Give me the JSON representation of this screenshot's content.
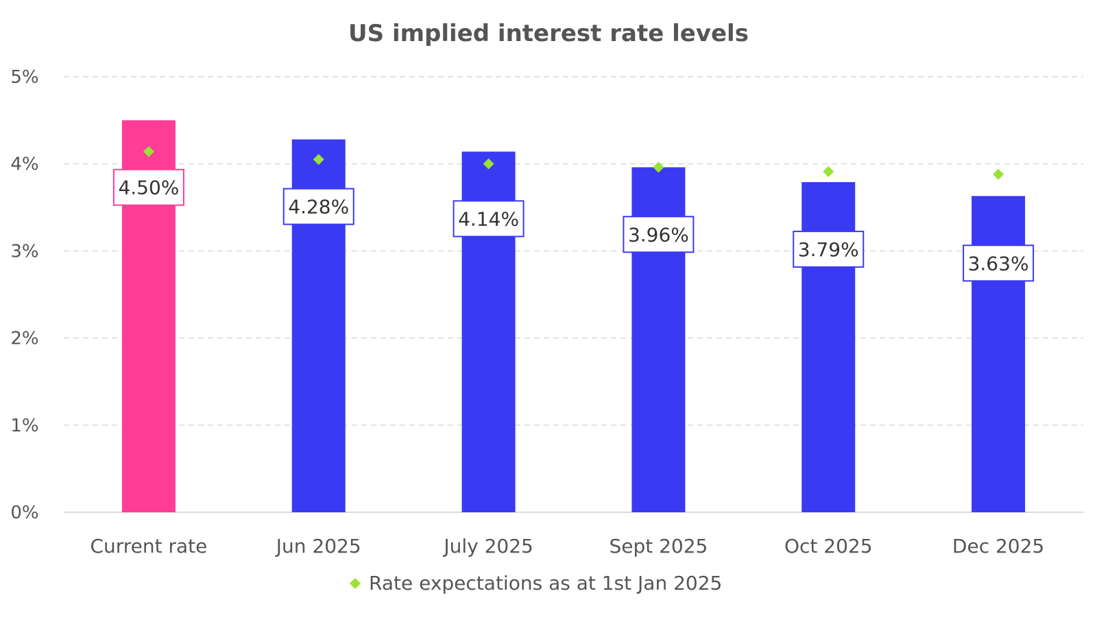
{
  "chart_data": {
    "type": "bar",
    "title": "US implied interest rate levels",
    "xlabel": "",
    "ylabel": "",
    "categories": [
      "Current rate",
      "Jun 2025",
      "July 2025",
      "Sept 2025",
      "Oct 2025",
      "Dec 2025"
    ],
    "values": [
      4.5,
      4.28,
      4.14,
      3.96,
      3.79,
      3.63
    ],
    "data_labels": [
      "4.50%",
      "4.28%",
      "4.14%",
      "3.96%",
      "3.79%",
      "3.63%"
    ],
    "bar_colors": [
      "#FF3C96",
      "#3A3AF2",
      "#3A3AF2",
      "#3A3AF2",
      "#3A3AF2",
      "#3A3AF2"
    ],
    "markers": {
      "name": "Rate expectations as at 1st Jan 2025",
      "type": "scatter",
      "shape": "diamond",
      "color": "#99E236",
      "values": [
        4.14,
        4.05,
        4.0,
        3.96,
        3.91,
        3.88
      ]
    },
    "ylim": [
      0,
      5
    ],
    "yticks": [
      0,
      1,
      2,
      3,
      4,
      5
    ],
    "ytick_labels": [
      "0%",
      "1%",
      "2%",
      "3%",
      "4%",
      "5%"
    ],
    "grid": true,
    "legend_position": "bottom-center"
  }
}
